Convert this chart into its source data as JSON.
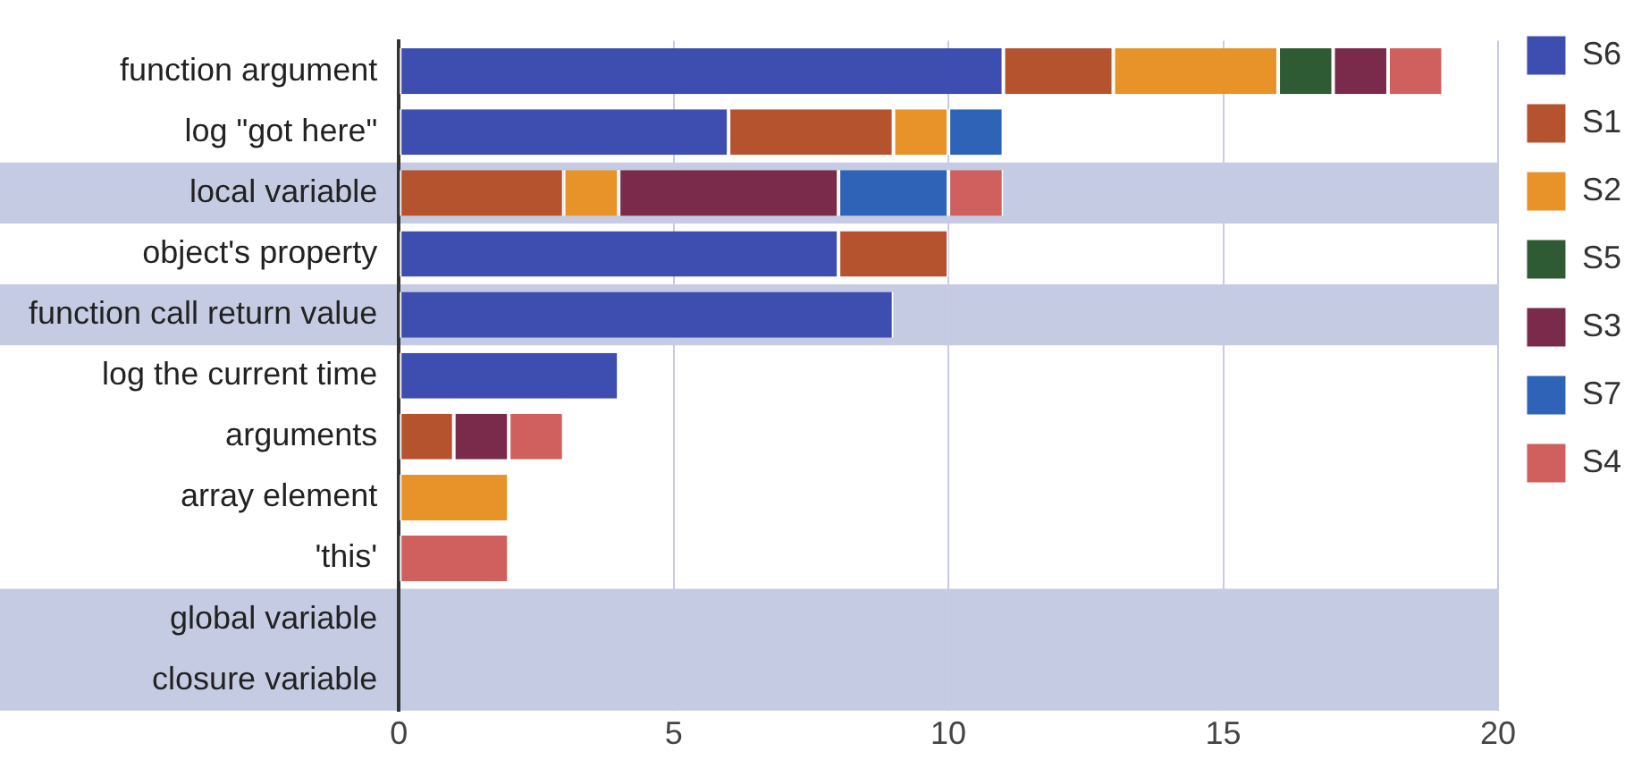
{
  "chart_data": {
    "type": "bar",
    "orientation": "horizontal",
    "stacked": true,
    "categories": [
      "function argument",
      "log \"got here\"",
      "local variable",
      "object's property",
      "function call return value",
      "log the current time",
      "arguments",
      "array element",
      "'this'",
      "global variable",
      "closure variable"
    ],
    "series": [
      {
        "name": "S6",
        "color": "#3d4db0",
        "values": [
          11,
          6,
          0,
          8,
          9,
          4,
          0,
          0,
          0,
          0,
          0
        ]
      },
      {
        "name": "S1",
        "color": "#b5532e",
        "values": [
          2,
          3,
          3,
          2,
          0,
          0,
          1,
          0,
          0,
          0,
          0
        ]
      },
      {
        "name": "S2",
        "color": "#e8922a",
        "values": [
          3,
          1,
          1,
          0,
          0,
          0,
          0,
          2,
          0,
          0,
          0
        ]
      },
      {
        "name": "S5",
        "color": "#2e5b34",
        "values": [
          1,
          0,
          0,
          0,
          0,
          0,
          0,
          0,
          0,
          0,
          0
        ]
      },
      {
        "name": "S3",
        "color": "#7a2a4a",
        "values": [
          1,
          0,
          4,
          0,
          0,
          0,
          1,
          0,
          0,
          0,
          0
        ]
      },
      {
        "name": "S7",
        "color": "#2e63b8",
        "values": [
          0,
          1,
          2,
          0,
          0,
          0,
          0,
          0,
          0,
          0,
          0
        ]
      },
      {
        "name": "S4",
        "color": "#d0605e",
        "values": [
          1,
          0,
          1,
          0,
          0,
          0,
          1,
          0,
          2,
          0,
          0
        ]
      }
    ],
    "xlim": [
      0,
      20
    ],
    "xticks": [
      0,
      5,
      10,
      15,
      20
    ],
    "grid": "x",
    "legend": "right",
    "bands": [
      {
        "axis": "y",
        "from": "local variable",
        "to": "local variable",
        "color": "#c5cbe3"
      },
      {
        "axis": "y",
        "from": "function call return value",
        "to": "function call return value",
        "color": "#c5cbe3"
      },
      {
        "axis": "y",
        "from": "global variable",
        "to": "closure variable",
        "color": "#c5cbe3"
      }
    ]
  }
}
